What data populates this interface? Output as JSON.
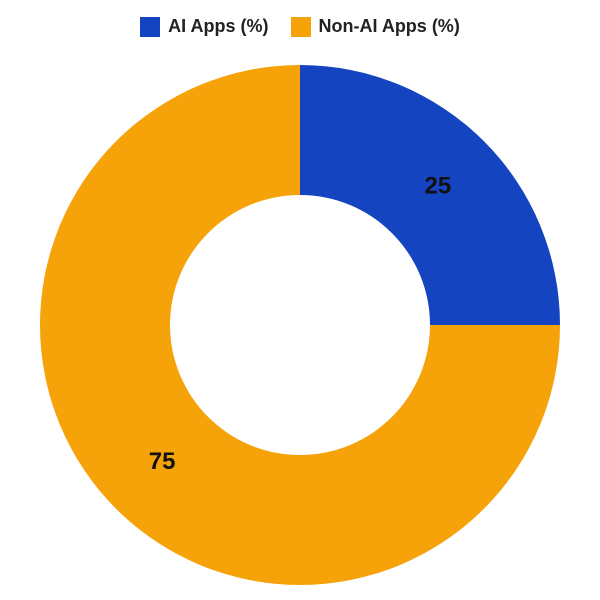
{
  "chart": {
    "type": "donut",
    "legend": [
      {
        "label": "AI Apps (%)",
        "color": "#1544c0"
      },
      {
        "label": "Non-AI Apps (%)",
        "color": "#f6a209"
      }
    ],
    "slices": [
      {
        "name": "ai",
        "value": 25,
        "label": "25",
        "color": "#1544c0"
      },
      {
        "name": "non-ai",
        "value": 75,
        "label": "75",
        "color": "#f6a209"
      }
    ],
    "legend_fontsize": 18,
    "label_fontsize": 24,
    "background_color": "#ffffff",
    "outer_radius": 260,
    "inner_radius": 130,
    "start_angle_deg": 0,
    "label_radius": 195
  }
}
